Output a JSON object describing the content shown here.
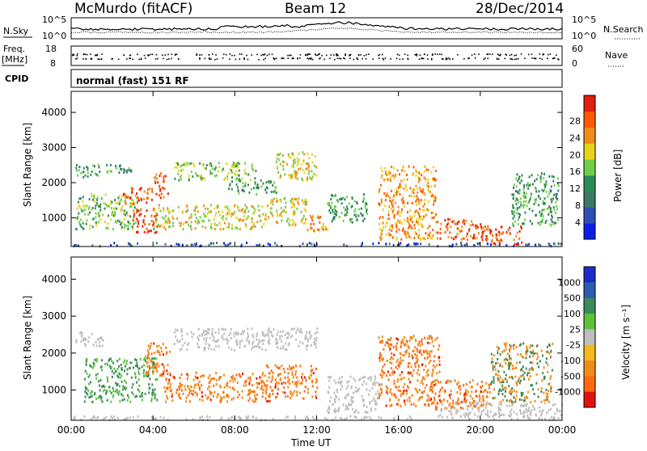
{
  "header": {
    "station": "McMurdo (fitACF)",
    "beam": "Beam 12",
    "date": "28/Dec/2014"
  },
  "top_strip": {
    "left_label": "N.Sky",
    "right_label": "N.Search",
    "left_ticks": [
      "10^5",
      "10^0"
    ],
    "right_ticks": [
      "10^5",
      "10^0"
    ],
    "freq_label": "Freq.",
    "freq_unit": "[MHz]",
    "freq_ticks": [
      "18",
      "8"
    ],
    "nave_label": "Nave",
    "nave_ticks": [
      "60",
      "0"
    ],
    "cpid_label": "CPID",
    "cpid_text": "normal (fast) 151 RF"
  },
  "colors": {
    "power": [
      "#0a1fe6",
      "#2d4fb8",
      "#3a7a68",
      "#2e8b57",
      "#6fcf4a",
      "#e8d21f",
      "#f08c1a",
      "#ff5a00",
      "#e02010"
    ],
    "velocity_high": "#1a2ccc",
    "velocity_low": "#e0140c",
    "ground_scatter": "#bebebe"
  },
  "chart_data": [
    {
      "type": "heatmap",
      "name": "power",
      "ylabel": "Slant Range [km]",
      "xlabel": "Time UT",
      "x_ticks": [
        "00:00",
        "04:00",
        "08:00",
        "12:00",
        "16:00",
        "20:00",
        "00:00"
      ],
      "y_ticks": [
        "1000",
        "2000",
        "3000",
        "4000"
      ],
      "ylim": [
        180,
        4600
      ],
      "xlim": [
        0,
        24
      ],
      "colorbar_label": "Power [dB]",
      "colorbar_ticks": [
        "4",
        "8",
        "12",
        "16",
        "20",
        "24",
        "28"
      ],
      "scatter_regions": [
        {
          "t": [
            0.0,
            24.0
          ],
          "r": [
            220,
            320
          ],
          "level": 1
        },
        {
          "t": [
            0.2,
            1.4
          ],
          "r": [
            2150,
            2550
          ],
          "level": 3
        },
        {
          "t": [
            0.2,
            3.2
          ],
          "r": [
            700,
            1700
          ],
          "level": 4
        },
        {
          "t": [
            1.6,
            3.0
          ],
          "r": [
            2250,
            2550
          ],
          "level": 3
        },
        {
          "t": [
            2.5,
            4.0
          ],
          "r": [
            1400,
            1900
          ],
          "level": 7
        },
        {
          "t": [
            3.0,
            4.2
          ],
          "r": [
            600,
            1300
          ],
          "level": 8
        },
        {
          "t": [
            4.0,
            4.7
          ],
          "r": [
            1600,
            2300
          ],
          "level": 7
        },
        {
          "t": [
            4.0,
            9.5
          ],
          "r": [
            700,
            1400
          ],
          "level": 5
        },
        {
          "t": [
            5.0,
            9.0
          ],
          "r": [
            2100,
            2600
          ],
          "level": 4
        },
        {
          "t": [
            7.5,
            10.0
          ],
          "r": [
            1700,
            2100
          ],
          "level": 3
        },
        {
          "t": [
            9.5,
            11.5
          ],
          "r": [
            800,
            1600
          ],
          "level": 5
        },
        {
          "t": [
            10.0,
            12.0
          ],
          "r": [
            2100,
            2900
          ],
          "level": 5
        },
        {
          "t": [
            11.5,
            12.5
          ],
          "r": [
            600,
            1100
          ],
          "level": 6
        },
        {
          "t": [
            12.5,
            14.5
          ],
          "r": [
            900,
            1700
          ],
          "level": 3
        },
        {
          "t": [
            15.0,
            17.8
          ],
          "r": [
            400,
            2500
          ],
          "level": 6
        },
        {
          "t": [
            17.8,
            20.2
          ],
          "r": [
            400,
            1000
          ],
          "level": 7
        },
        {
          "t": [
            20.2,
            22.0
          ],
          "r": [
            250,
            800
          ],
          "level": 7
        },
        {
          "t": [
            21.5,
            23.8
          ],
          "r": [
            800,
            2300
          ],
          "level": 3
        }
      ]
    },
    {
      "type": "heatmap",
      "name": "velocity",
      "ylabel": "Slant Range [km]",
      "xlabel": "Time UT",
      "x_ticks": [
        "00:00",
        "04:00",
        "08:00",
        "12:00",
        "16:00",
        "20:00",
        "00:00"
      ],
      "y_ticks": [
        "1000",
        "2000",
        "3000",
        "4000"
      ],
      "ylim": [
        180,
        4600
      ],
      "xlim": [
        0,
        24
      ],
      "colorbar_label": "Velocity [m s⁻¹]",
      "colorbar_ticks": [
        "1000",
        "500",
        "100",
        "25",
        "-25",
        "-100",
        "-500",
        "-1000"
      ],
      "scatter_regions": [
        {
          "t": [
            0.0,
            24.0
          ],
          "r": [
            220,
            320
          ],
          "v": "gs"
        },
        {
          "t": [
            0.2,
            1.6
          ],
          "r": [
            2200,
            2600
          ],
          "v": "gs"
        },
        {
          "t": [
            0.6,
            4.2
          ],
          "r": [
            700,
            1900
          ],
          "v": "pos"
        },
        {
          "t": [
            3.6,
            4.8
          ],
          "r": [
            1400,
            2300
          ],
          "v": "neg"
        },
        {
          "t": [
            4.5,
            9.8
          ],
          "r": [
            700,
            1500
          ],
          "v": "neg"
        },
        {
          "t": [
            5.0,
            12.0
          ],
          "r": [
            2100,
            2700
          ],
          "v": "gs"
        },
        {
          "t": [
            9.5,
            12.0
          ],
          "r": [
            800,
            1700
          ],
          "v": "neg"
        },
        {
          "t": [
            12.5,
            15.0
          ],
          "r": [
            400,
            1400
          ],
          "v": "gs"
        },
        {
          "t": [
            15.0,
            18.0
          ],
          "r": [
            600,
            2500
          ],
          "v": "neg"
        },
        {
          "t": [
            17.5,
            20.5
          ],
          "r": [
            500,
            1300
          ],
          "v": "neg"
        },
        {
          "t": [
            18.0,
            24.0
          ],
          "r": [
            300,
            700
          ],
          "v": "gs"
        },
        {
          "t": [
            20.5,
            23.5
          ],
          "r": [
            700,
            2300
          ],
          "v": "mix"
        }
      ]
    }
  ]
}
